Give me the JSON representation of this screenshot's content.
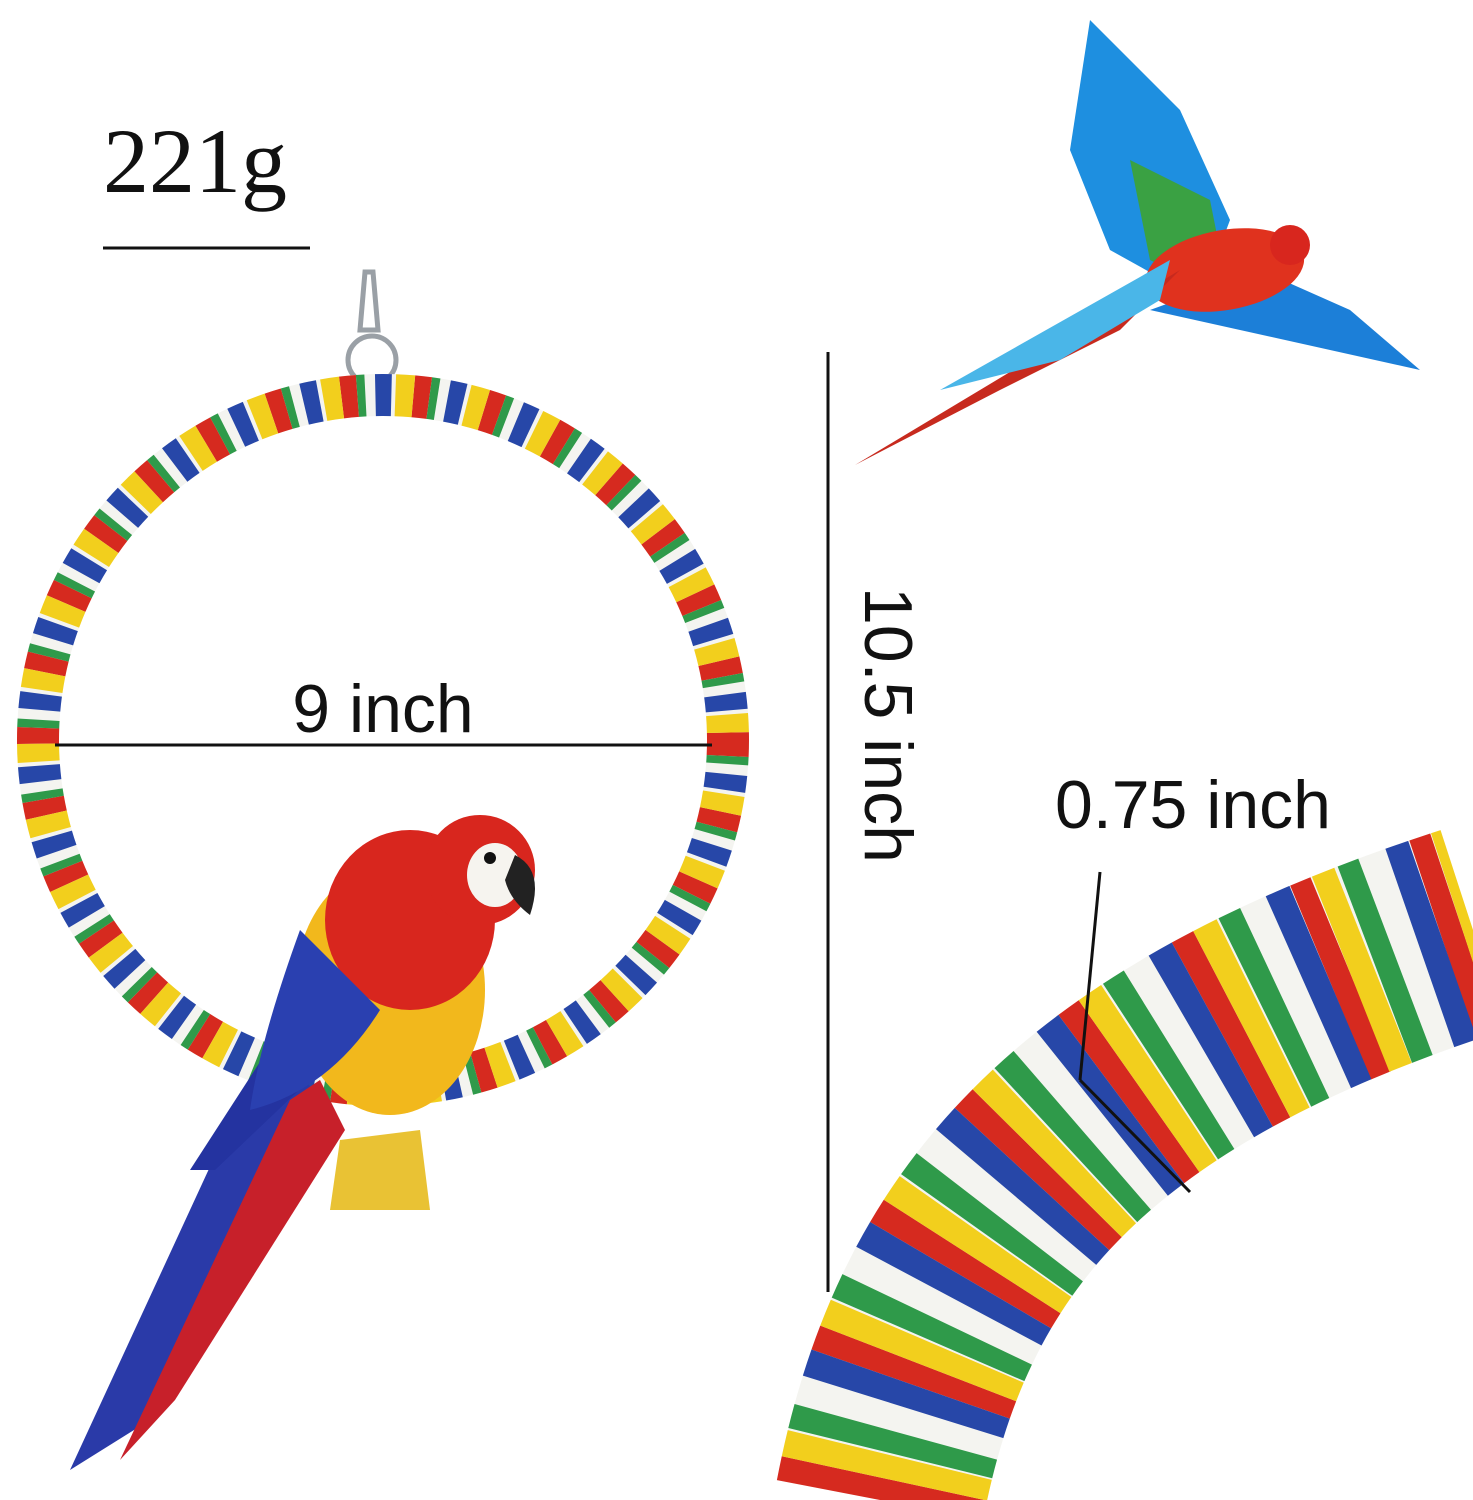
{
  "weight": "221g",
  "diameter_label": "9 inch",
  "height_label": "10.5 inch",
  "thickness_label": "0.75 inch"
}
